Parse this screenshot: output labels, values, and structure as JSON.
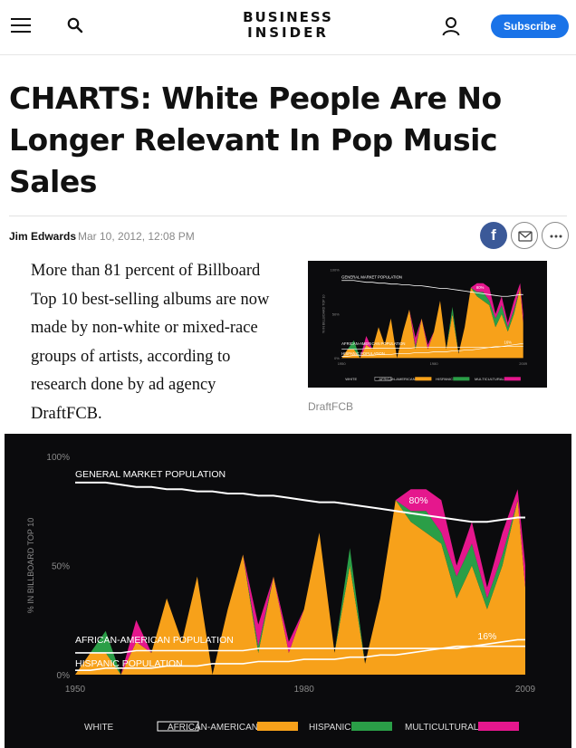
{
  "header": {
    "logo_line1": "BUSINESS",
    "logo_line2": "INSIDER",
    "subscribe_label": "Subscribe",
    "icons": [
      "menu-icon",
      "search-icon",
      "user-icon"
    ]
  },
  "article": {
    "title": "CHARTS: White People Are No Longer Relevant In Pop Music Sales",
    "author": "Jim Edwards",
    "date": "Mar 10, 2012, 12:08 PM",
    "share_icons": [
      "facebook-icon",
      "mail-icon",
      "more-icon"
    ],
    "share_fb_label": "f",
    "body": "More than 81 percent of Billboard Top 10 best-selling albums are now made by non-white or mixed-race groups of artists, according to research done by ad agency DraftFCB.",
    "thumb_caption": "DraftFCB"
  },
  "colors": {
    "accent": "#1a73e8",
    "facebook": "#3b5998",
    "african_american": "#f7a11a",
    "hispanic": "#2a9e47",
    "multicultural": "#e5178d",
    "chart_bg": "#0b0b0d"
  },
  "chart_data": {
    "type": "area",
    "ylabel": "% IN BILLBOARD TOP 10",
    "yticks": [
      "0%",
      "50%",
      "100%"
    ],
    "xticks": [
      "1950",
      "1980",
      "2009"
    ],
    "xlim": [
      1950,
      2009
    ],
    "ylim": [
      0,
      100
    ],
    "annotations": [
      {
        "text": "GENERAL MARKET POPULATION"
      },
      {
        "text": "AFRICAN-AMERICAN POPULATION"
      },
      {
        "text": "HISPANIC POPULATION"
      },
      {
        "text": "80%"
      },
      {
        "text": "16%"
      }
    ],
    "legend_position": "bottom",
    "legend": [
      "WHITE",
      "AFRICAN-AMERICAN",
      "HISPANIC",
      "MULTICULTURAL"
    ],
    "x": [
      1950,
      1952,
      1954,
      1956,
      1958,
      1960,
      1962,
      1964,
      1966,
      1968,
      1970,
      1972,
      1974,
      1976,
      1978,
      1980,
      1982,
      1984,
      1986,
      1988,
      1990,
      1992,
      1994,
      1996,
      1998,
      2000,
      2002,
      2004,
      2006,
      2008,
      2009
    ],
    "series": [
      {
        "name": "AFRICAN-AMERICAN",
        "values": [
          0,
          10,
          10,
          0,
          15,
          10,
          35,
          15,
          45,
          0,
          30,
          55,
          10,
          45,
          10,
          30,
          65,
          10,
          50,
          5,
          35,
          80,
          70,
          65,
          60,
          35,
          50,
          30,
          50,
          80,
          40
        ]
      },
      {
        "name": "HISPANIC",
        "values": [
          0,
          0,
          10,
          0,
          0,
          0,
          0,
          0,
          0,
          0,
          0,
          0,
          3,
          0,
          0,
          0,
          0,
          0,
          8,
          0,
          0,
          0,
          5,
          10,
          5,
          10,
          10,
          5,
          5,
          0,
          0
        ]
      },
      {
        "name": "MULTICULTURAL",
        "values": [
          0,
          0,
          0,
          0,
          10,
          0,
          0,
          0,
          0,
          0,
          0,
          0,
          10,
          0,
          5,
          0,
          0,
          0,
          0,
          0,
          0,
          0,
          10,
          10,
          15,
          5,
          10,
          5,
          10,
          5,
          10
        ]
      },
      {
        "name": "WHITE",
        "values": [
          88,
          88,
          88,
          87,
          86,
          86,
          85,
          85,
          84,
          84,
          83,
          83,
          82,
          82,
          81,
          80,
          79,
          79,
          78,
          77,
          76,
          75,
          74,
          73,
          72,
          71,
          70,
          70,
          71,
          72,
          72
        ]
      }
    ],
    "reference_lines": [
      {
        "name": "AFRICAN-AMERICAN POPULATION",
        "values": [
          10,
          10,
          10,
          10,
          11,
          11,
          11,
          11,
          11,
          11,
          11,
          11,
          12,
          12,
          12,
          12,
          12,
          12,
          12,
          12,
          12,
          12,
          12,
          12,
          12,
          12,
          13,
          13,
          13,
          13,
          13
        ]
      },
      {
        "name": "HISPANIC POPULATION",
        "values": [
          2,
          2,
          3,
          3,
          3,
          3,
          4,
          4,
          4,
          5,
          5,
          5,
          6,
          6,
          6,
          7,
          7,
          7,
          8,
          8,
          9,
          9,
          10,
          11,
          12,
          13,
          13,
          14,
          15,
          16,
          16
        ]
      }
    ]
  }
}
